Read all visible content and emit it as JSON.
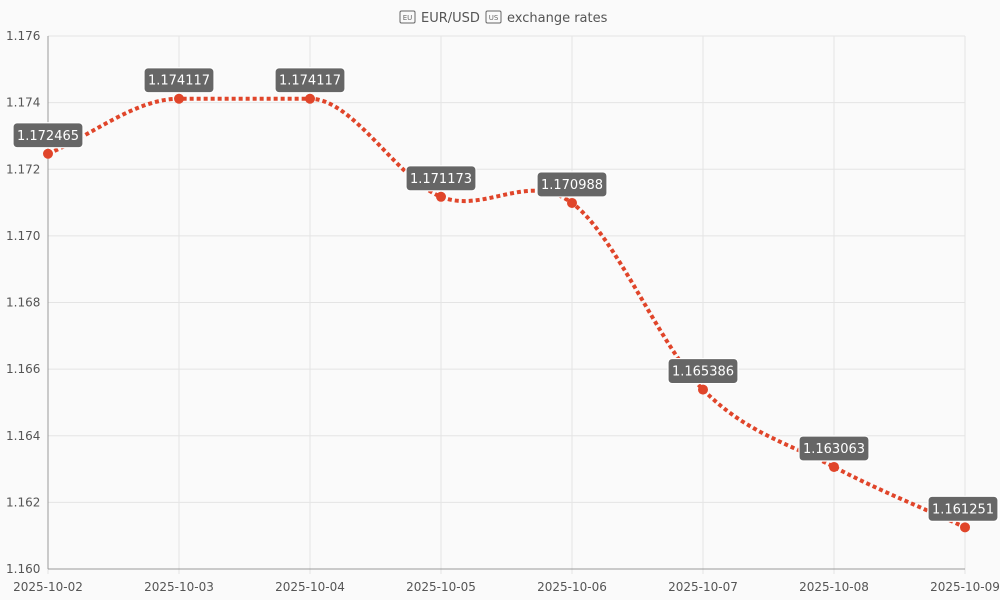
{
  "chart_data": {
    "type": "line",
    "title": "EUR/USD exchange rates",
    "title_icons": [
      "eu-flag-icon",
      "us-flag-icon"
    ],
    "title_parts": {
      "before": "",
      "middle": "EUR/USD",
      "after": "exchange rates"
    },
    "x": [
      "2025-10-02",
      "2025-10-03",
      "2025-10-04",
      "2025-10-05",
      "2025-10-06",
      "2025-10-07",
      "2025-10-08",
      "2025-10-09"
    ],
    "y_ticks": [
      "1.160",
      "1.162",
      "1.164",
      "1.166",
      "1.168",
      "1.170",
      "1.172",
      "1.174",
      "1.176"
    ],
    "ylim": [
      1.16,
      1.176
    ],
    "series": [
      {
        "values": [
          1.172465,
          1.174117,
          1.174117,
          1.171173,
          1.170988,
          1.165386,
          1.163063,
          1.161251
        ],
        "labels": [
          "1.172465",
          "1.174117",
          "1.174117",
          "1.171173",
          "1.170988",
          "1.165386",
          "1.163063",
          "1.161251"
        ],
        "color": "#e0452a",
        "line_style": "dotted",
        "smooth": true
      }
    ],
    "grid": true,
    "data_label_bg": "#666666"
  }
}
